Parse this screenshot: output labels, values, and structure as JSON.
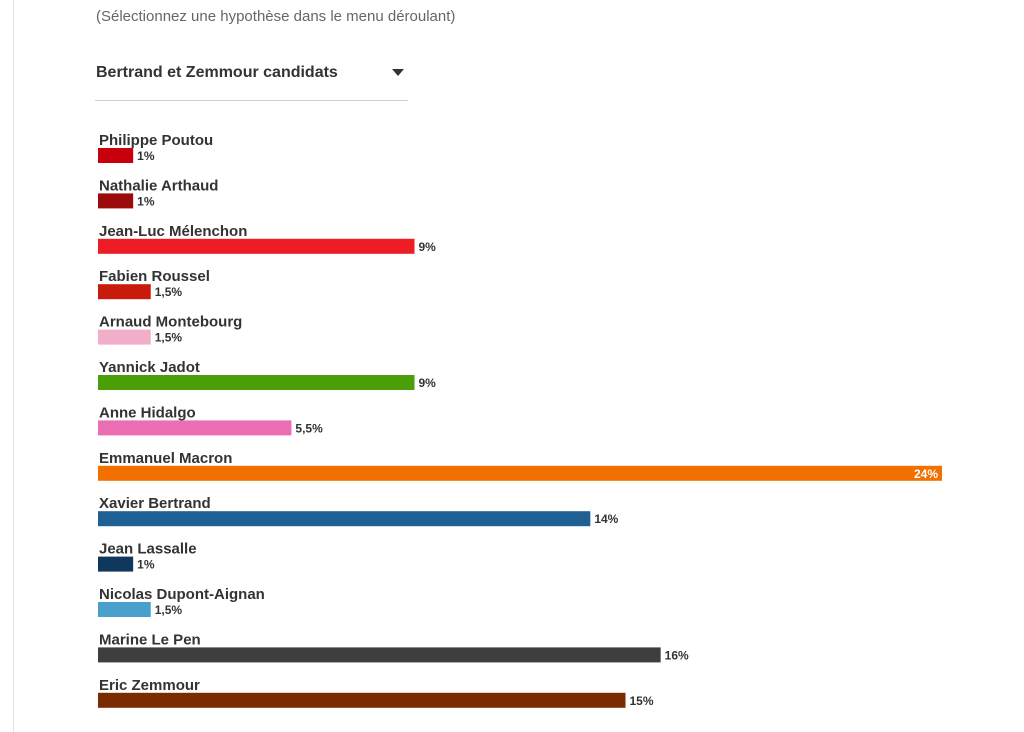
{
  "header": {
    "hint": "(Sélectionnez une hypothèse dans le menu déroulant)"
  },
  "dropdown": {
    "selected": "Bertrand et Zemmour candidats",
    "icon": "caret-down-icon"
  },
  "chart_data": {
    "type": "bar",
    "orientation": "horizontal",
    "title": "",
    "xlabel": "",
    "ylabel": "",
    "grid": false,
    "categories": [
      "Philippe Poutou",
      "Nathalie Arthaud",
      "Jean-Luc Mélenchon",
      "Fabien Roussel",
      "Arnaud Montebourg",
      "Yannick Jadot",
      "Anne Hidalgo",
      "Emmanuel Macron",
      "Xavier Bertrand",
      "Jean Lassalle",
      "Nicolas Dupont-Aignan",
      "Marine Le Pen",
      "Eric Zemmour"
    ],
    "values": [
      1,
      1,
      9,
      1.5,
      1.5,
      9,
      5.5,
      24,
      14,
      1,
      1.5,
      16,
      15
    ],
    "value_labels": [
      "1%",
      "1%",
      "9%",
      "1,5%",
      "1,5%",
      "9%",
      "5,5%",
      "24%",
      "14%",
      "1%",
      "1,5%",
      "16%",
      "15%"
    ],
    "colors": [
      "#c8000e",
      "#9b0b0b",
      "#ee1c24",
      "#c81b0c",
      "#f2adc8",
      "#4a9e08",
      "#eb6eb4",
      "#f27000",
      "#1e5f94",
      "#10385c",
      "#4aa0cc",
      "#3e3e3e",
      "#7b2b00"
    ],
    "xlim": [
      0,
      24
    ]
  }
}
